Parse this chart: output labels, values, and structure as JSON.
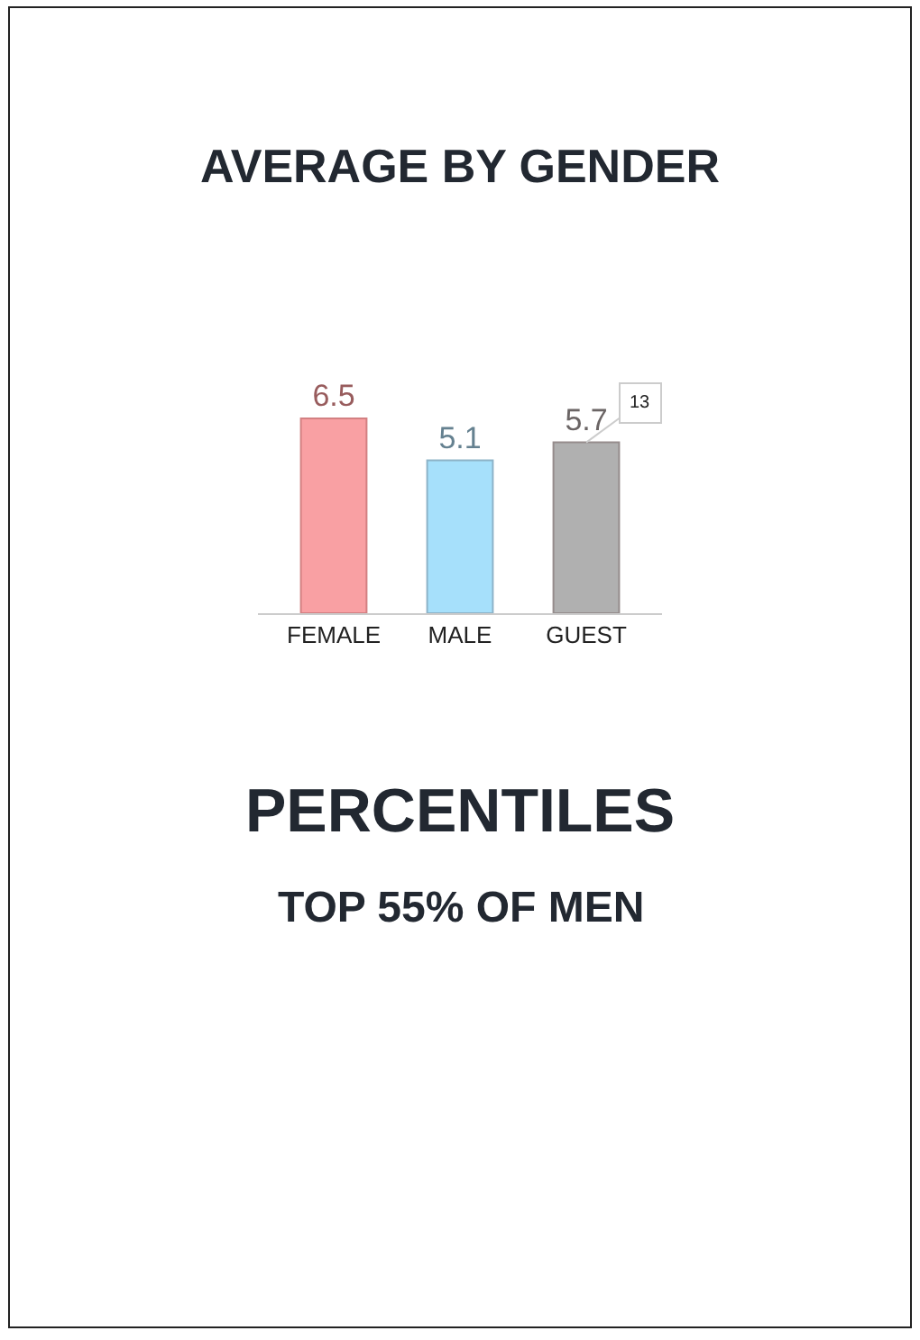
{
  "chart_data": {
    "type": "bar",
    "title": "AVERAGE BY GENDER",
    "categories": [
      "FEMALE",
      "MALE",
      "GUEST"
    ],
    "values": [
      6.5,
      5.1,
      5.7
    ],
    "colors": [
      "#f9a0a3",
      "#a6e0fb",
      "#b0b0b0"
    ],
    "data_labels": true,
    "annotations": [
      {
        "text": "13",
        "x": "GUEST",
        "y": 5.7
      },
      "PERCENTILES",
      "TOP 55% OF MEN"
    ]
  }
}
